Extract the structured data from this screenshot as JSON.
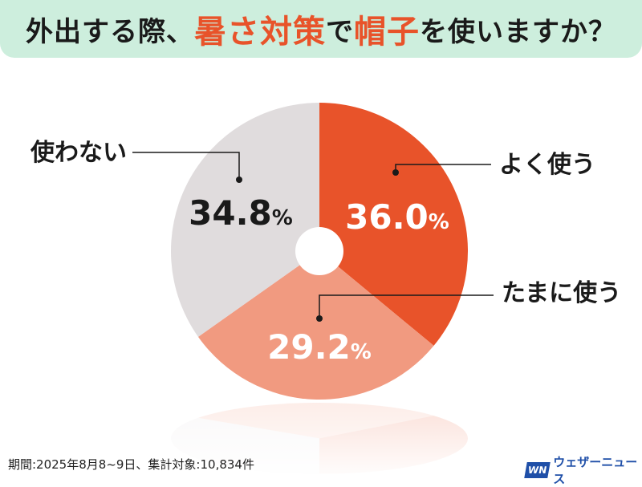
{
  "title": {
    "part1": "外出する際、",
    "highlight1": "暑さ対策",
    "part2": "で",
    "highlight2": "帽子",
    "part3": "を使いますか？"
  },
  "chart_data": {
    "type": "pie",
    "categories": [
      "よく使う",
      "たまに使う",
      "使わない"
    ],
    "values": [
      36.0,
      29.2,
      34.8
    ],
    "data_labels": [
      "36.0%",
      "29.2%",
      "34.8%"
    ],
    "colors": [
      "#e8532a",
      "#f19a80",
      "#e0dcdd"
    ],
    "donut_hole": true
  },
  "footer": {
    "note": "期間:2025年8月8~9日、集計対象:10,834件"
  },
  "logo": {
    "mark": "WN",
    "name": "ウェザーニュース"
  }
}
